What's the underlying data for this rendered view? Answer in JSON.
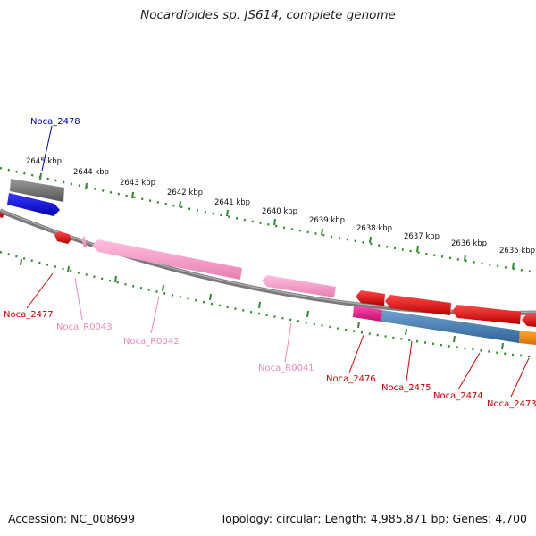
{
  "title": "Nocardioides sp. JS614, complete genome",
  "footer": {
    "accession": "Accession: NC_008699",
    "topology": "Topology: circular; Length: 4,985,871 bp; Genes: 4,700"
  },
  "ticks": [
    "2645 kbp",
    "2644 kbp",
    "2643 kbp",
    "2642 kbp",
    "2641 kbp",
    "2640 kbp",
    "2639 kbp",
    "2638 kbp",
    "2637 kbp",
    "2636 kbp",
    "2635 kbp"
  ],
  "genes": [
    {
      "id": "Noca_2478",
      "color": "#0000cc"
    },
    {
      "id": "Noca_2477",
      "color": "#cc0000"
    },
    {
      "id": "Noca_R0043",
      "color": "#ee88bb"
    },
    {
      "id": "Noca_R0042",
      "color": "#ee88bb"
    },
    {
      "id": "Noca_R0041",
      "color": "#ee88bb"
    },
    {
      "id": "Noca_2476",
      "color": "#cc0000"
    },
    {
      "id": "Noca_2475",
      "color": "#cc0000"
    },
    {
      "id": "Noca_2474",
      "color": "#cc0000"
    },
    {
      "id": "Noca_2473",
      "color": "#cc0000"
    }
  ],
  "colors": {
    "backbone": "#808080",
    "ruler": "#228b22",
    "forward_cds": "#ff0000",
    "rna": "#ff99cc",
    "blue_cds": "#0000ee",
    "grey_feature": "#666666",
    "magenta_feature": "#ff1493",
    "steelblue_feature": "#4682b4",
    "orange_feature": "#ff8c00"
  }
}
